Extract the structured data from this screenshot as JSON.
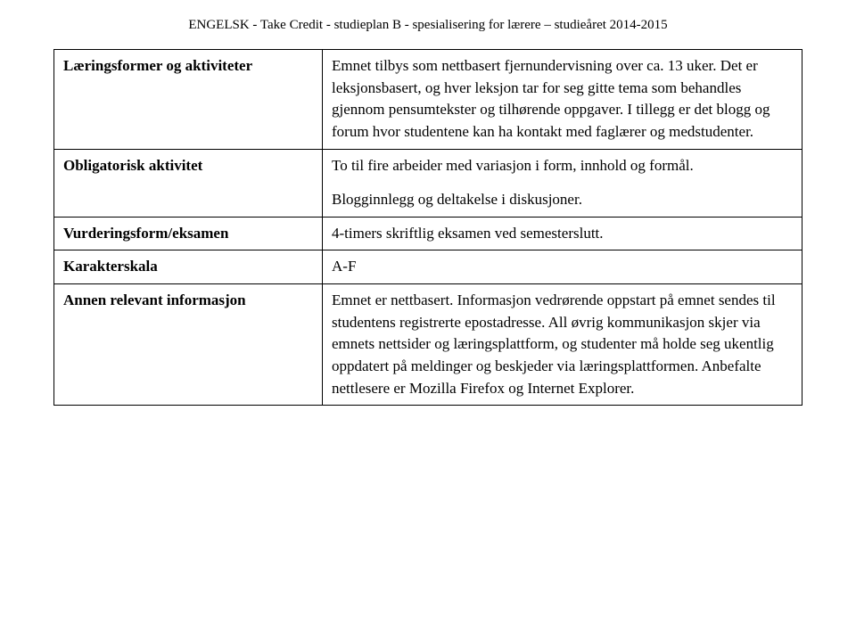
{
  "header": "ENGELSK - Take Credit - studieplan B - spesialisering for lærere – studieåret 2014-2015",
  "rows": [
    {
      "label": "Læringsformer og aktiviteter",
      "content": [
        "Emnet tilbys som nettbasert fjernundervisning over ca. 13 uker. Det er leksjonsbasert, og hver leksjon tar for seg gitte tema som behandles gjennom pensumtekster og tilhørende oppgaver. I tillegg er det blogg og forum hvor studentene kan ha kontakt med faglærer og medstudenter."
      ]
    },
    {
      "label": "Obligatorisk aktivitet",
      "content": [
        "To til fire arbeider med variasjon i form, innhold og formål.",
        "Blogginnlegg og deltakelse i diskusjoner."
      ]
    },
    {
      "label": "Vurderingsform/eksamen",
      "content": [
        "4-timers skriftlig eksamen ved semesterslutt."
      ]
    },
    {
      "label": "Karakterskala",
      "content": [
        "A-F"
      ]
    },
    {
      "label": "Annen relevant informasjon",
      "content": [
        "Emnet er nettbasert. Informasjon vedrørende oppstart på emnet sendes til studentens registrerte epostadresse. All øvrig kommunikasjon skjer via emnets nettsider og læringsplattform, og studenter må holde seg ukentlig oppdatert på meldinger og beskjeder via læringsplattformen. Anbefalte nettlesere er Mozilla Firefox og Internet Explorer."
      ]
    }
  ]
}
